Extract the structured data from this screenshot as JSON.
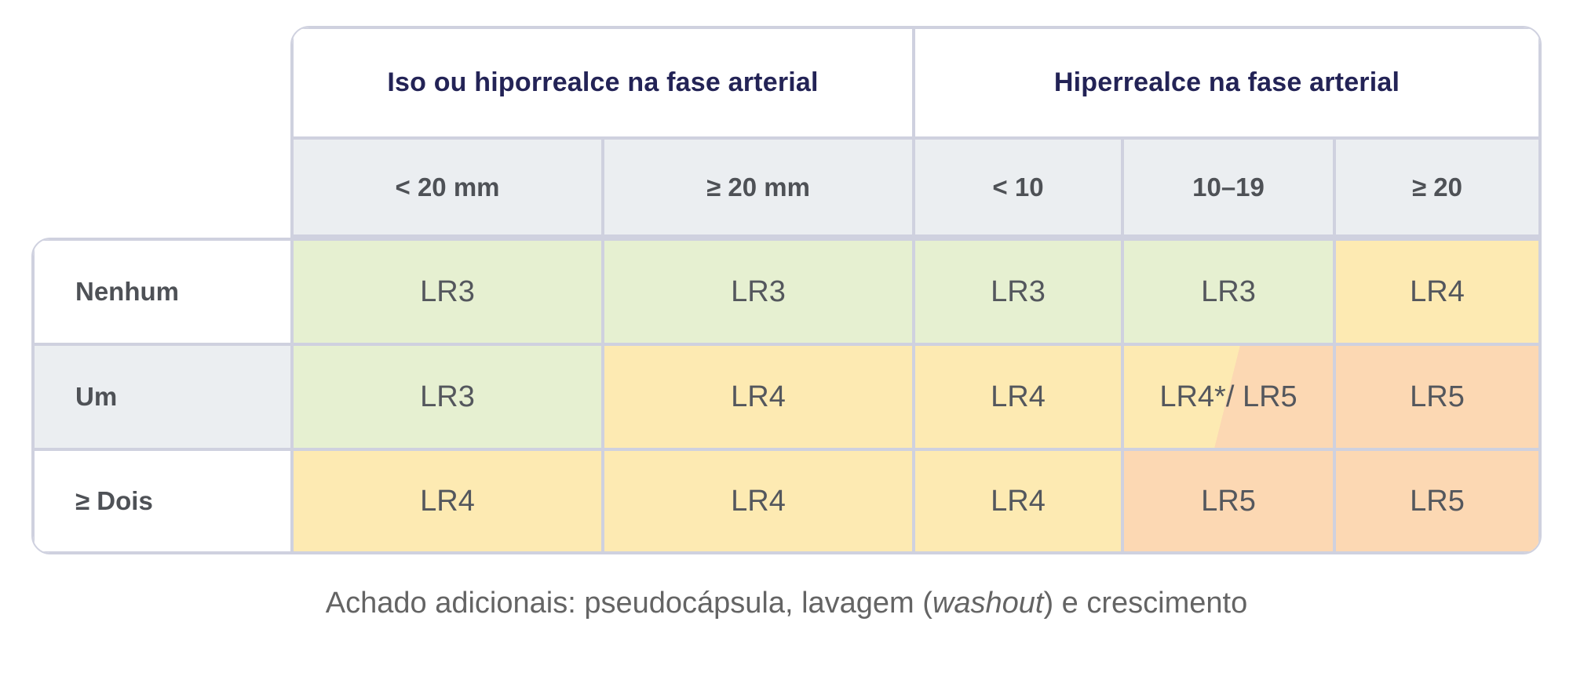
{
  "colors": {
    "border": "#cfd1df",
    "group_header_text": "#232356",
    "label_text": "#4e5156",
    "cell_text": "#54575d",
    "green": "#e6f0d1",
    "yellow": "#fdeab2",
    "orange": "#fcd8b3",
    "subheader_bg": "#ebeef1"
  },
  "table": {
    "group_headers": [
      {
        "label": "Iso ou hiporrealce na fase arterial"
      },
      {
        "label": "Hiperrealce na fase arterial"
      }
    ],
    "column_headers": [
      "< 20 mm",
      "≥ 20 mm",
      "< 10",
      "10–19",
      "≥ 20"
    ],
    "rows": [
      {
        "label": "Nenhum",
        "cells": [
          {
            "value": "LR3",
            "color": "green"
          },
          {
            "value": "LR3",
            "color": "green"
          },
          {
            "value": "LR3",
            "color": "green"
          },
          {
            "value": "LR3",
            "color": "green"
          },
          {
            "value": "LR4",
            "color": "yellow"
          }
        ]
      },
      {
        "label": "Um",
        "cells": [
          {
            "value": "LR3",
            "color": "green"
          },
          {
            "value": "LR4",
            "color": "yellow"
          },
          {
            "value": "LR4",
            "color": "yellow"
          },
          {
            "value": "LR4*/ LR5",
            "color": "split"
          },
          {
            "value": "LR5",
            "color": "orange"
          }
        ]
      },
      {
        "label": "≥ Dois",
        "cells": [
          {
            "value": "LR4",
            "color": "yellow"
          },
          {
            "value": "LR4",
            "color": "yellow"
          },
          {
            "value": "LR4",
            "color": "yellow"
          },
          {
            "value": "LR5",
            "color": "orange"
          },
          {
            "value": "LR5",
            "color": "orange"
          }
        ]
      }
    ]
  },
  "footnote": {
    "prefix": "Achado adicionais: pseudocápsula, lavagem (",
    "italic_word": "washout",
    "suffix": ") e crescimento"
  },
  "chart_data": {
    "type": "table",
    "title": "",
    "column_groups": [
      {
        "label": "Iso ou hiporrealce na fase arterial",
        "columns": [
          "< 20 mm",
          "≥ 20 mm"
        ]
      },
      {
        "label": "Hiperrealce na fase arterial",
        "columns": [
          "< 10",
          "10–19",
          "≥ 20"
        ]
      }
    ],
    "columns": [
      "< 20 mm",
      "≥ 20 mm",
      "< 10",
      "10–19",
      "≥ 20"
    ],
    "rows": [
      {
        "label": "Nenhum",
        "values": [
          "LR3",
          "LR3",
          "LR3",
          "LR3",
          "LR4"
        ]
      },
      {
        "label": "Um",
        "values": [
          "LR3",
          "LR4",
          "LR4",
          "LR4*/ LR5",
          "LR5"
        ]
      },
      {
        "label": "≥ Dois",
        "values": [
          "LR4",
          "LR4",
          "LR4",
          "LR5",
          "LR5"
        ]
      }
    ],
    "cell_colors": [
      [
        "green",
        "green",
        "green",
        "green",
        "yellow"
      ],
      [
        "green",
        "yellow",
        "yellow",
        "yellow-orange-split",
        "orange"
      ],
      [
        "yellow",
        "yellow",
        "yellow",
        "orange",
        "orange"
      ]
    ],
    "color_legend": {
      "green": "#e6f0d1",
      "yellow": "#fdeab2",
      "orange": "#fcd8b3"
    },
    "footnote": "Achado adicionais: pseudocápsula, lavagem (washout) e crescimento"
  }
}
